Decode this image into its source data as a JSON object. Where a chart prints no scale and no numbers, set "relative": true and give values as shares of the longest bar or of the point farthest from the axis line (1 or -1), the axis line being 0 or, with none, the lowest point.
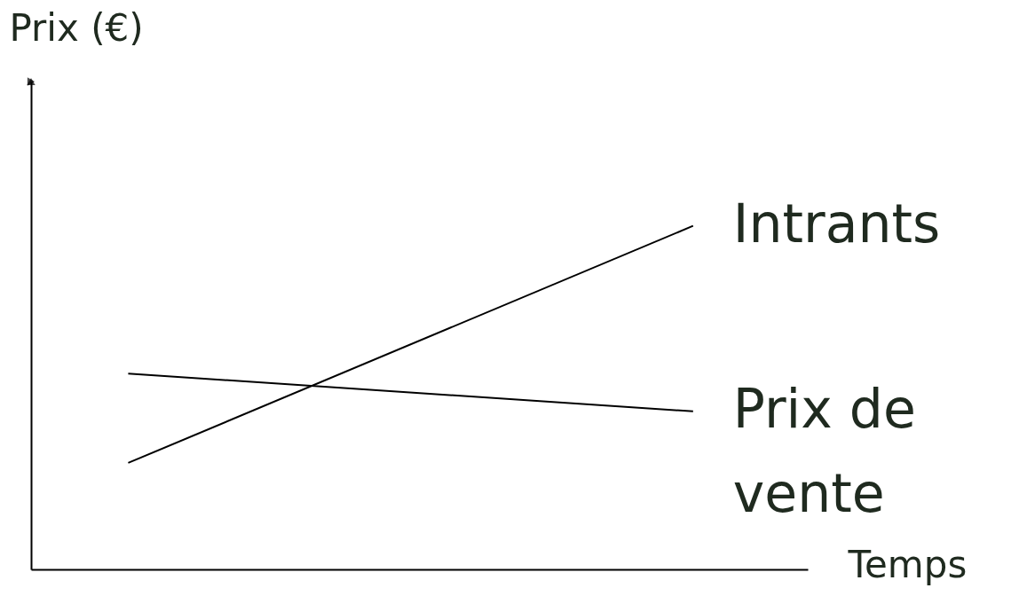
{
  "chart_data": {
    "type": "line",
    "relative": true,
    "xlabel": "Temps",
    "ylabel": "Prix (€)",
    "categories": [
      null,
      null
    ],
    "series": [
      {
        "name": "Intrants",
        "color": "#000000",
        "values": [
          0.31,
          1.0
        ]
      },
      {
        "name": "Prix de vente",
        "color": "#000000",
        "values": [
          0.57,
          0.46
        ]
      }
    ],
    "grid": false,
    "marker": "none",
    "line_style": "solid"
  }
}
